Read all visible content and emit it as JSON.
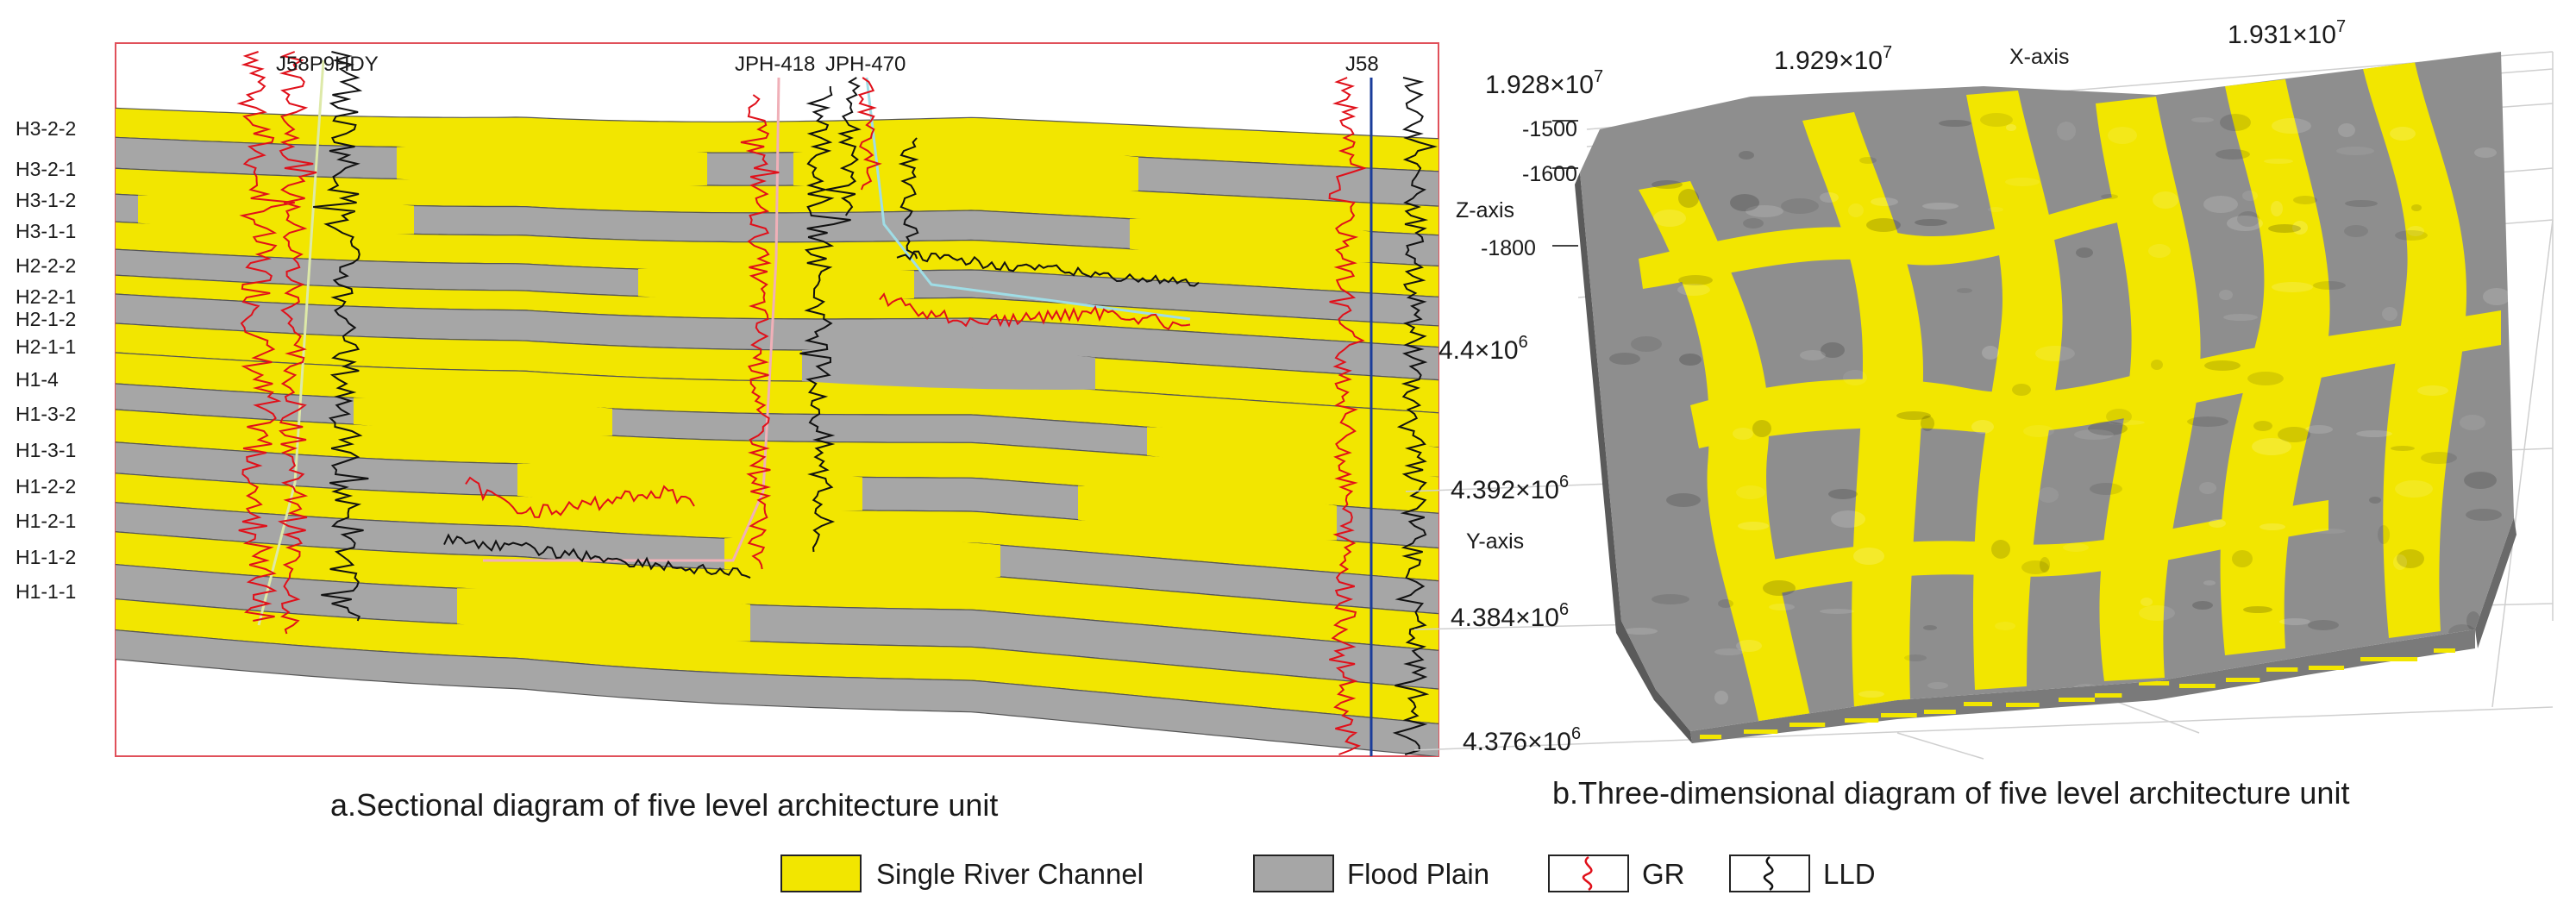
{
  "colors": {
    "channel": "#f2e600",
    "floodplain": "#a6a6a6",
    "frame": "#e0505a",
    "gr": "#e0101a",
    "lld": "#111111",
    "well_line_yellow": "#dde9a8",
    "well_line_pink": "#f0b0b8",
    "well_line_cyan": "#9fdde6",
    "well_line_blue": "#1a3c9a"
  },
  "section": {
    "layers": [
      "H3-2-2",
      "H3-2-1",
      "H3-1-2",
      "H3-1-1",
      "H2-2-2",
      "H2-2-1",
      "H2-1-2",
      "H2-1-1",
      "H1-4",
      "H1-3-2",
      "H1-3-1",
      "H1-2-2",
      "H1-2-1",
      "H1-1-2",
      "H1-1-1"
    ],
    "wells": [
      "J58P9HDY",
      "JPH-418",
      "JPH-470",
      "J58"
    ],
    "caption": "a.Sectional diagram of five level architecture unit"
  },
  "block3d": {
    "x_ticks": [
      "1.928×10",
      "1.929×10",
      "1.931×10"
    ],
    "x_exp": "7",
    "x_axis_name": "X-axis",
    "z_ticks": [
      "-1500",
      "-1600",
      "-1800"
    ],
    "z_axis_name": "Z-axis",
    "y_ticks": [
      "4.4×10",
      "4.392×10",
      "4.384×10",
      "4.376×10"
    ],
    "y_exp": "6",
    "y_axis_name": "Y-axis",
    "caption": "b.Three-dimensional diagram of five level architecture unit"
  },
  "legend": {
    "items": [
      {
        "label": "Single River Channel",
        "icon": "yellow-swatch"
      },
      {
        "label": "Flood Plain",
        "icon": "gray-swatch"
      },
      {
        "label": "GR",
        "icon": "red-curve-swatch"
      },
      {
        "label": "LLD",
        "icon": "black-curve-swatch"
      }
    ]
  }
}
